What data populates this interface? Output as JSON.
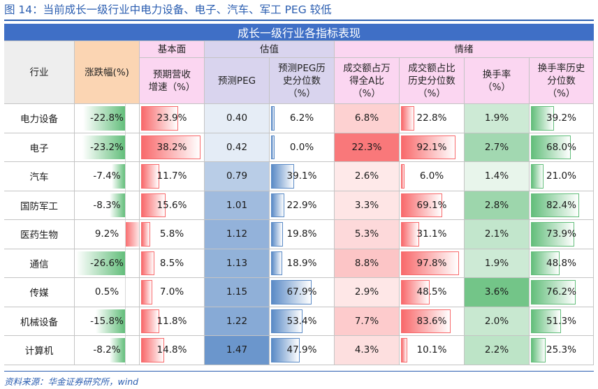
{
  "figure_title": "图 14：当前成长一级行业中电力设备、电子、汽车、军工 PEG 较低",
  "banner": "成长一级行业各指标表现",
  "groups": {
    "fundamental": "基本面",
    "valuation": "估值",
    "sentiment": "情绪"
  },
  "columns": {
    "industry": "行业",
    "change": "涨跌幅(%)",
    "revenue_growth": [
      "预期营收",
      "增速（%）"
    ],
    "peg": "预测PEG",
    "peg_pct": [
      "预测PEG历",
      "史分位数",
      "（%）"
    ],
    "turnover_share": [
      "成交额占万",
      "得全A比",
      "（%）"
    ],
    "turnover_share_pct": [
      "成交额占比",
      "历史分位数",
      "（%）"
    ],
    "turnover_rate": [
      "换手率",
      "（%）"
    ],
    "turnover_rate_pct": [
      "换手率历史",
      "分位数",
      "（%）"
    ]
  },
  "colors": {
    "title_blue": "#2a5db0",
    "banner_blue": "#3f6fc6",
    "header_pink": "#fbd6f1",
    "header_peach": "#fbd5b3",
    "header_lavender": "#d9d4ee",
    "header_gray": "#eeeeee",
    "bar_green": "#63be7b",
    "bar_red": "#f8696b",
    "bar_blue": "#5a8ac6"
  },
  "rows": [
    {
      "industry": "电力设备",
      "change": "-22.8%",
      "revenue_growth": "23.9%",
      "peg": "0.40",
      "peg_pct": "6.2%",
      "turnover_share": "6.8%",
      "turnover_share_pct": "22.8%",
      "turnover_rate": "1.9%",
      "turnover_rate_pct": "39.2%"
    },
    {
      "industry": "电子",
      "change": "-23.2%",
      "revenue_growth": "38.2%",
      "peg": "0.42",
      "peg_pct": "0.0%",
      "turnover_share": "22.3%",
      "turnover_share_pct": "92.1%",
      "turnover_rate": "2.7%",
      "turnover_rate_pct": "68.0%"
    },
    {
      "industry": "汽车",
      "change": "-7.4%",
      "revenue_growth": "11.7%",
      "peg": "0.79",
      "peg_pct": "39.1%",
      "turnover_share": "2.6%",
      "turnover_share_pct": "6.0%",
      "turnover_rate": "1.4%",
      "turnover_rate_pct": "21.0%"
    },
    {
      "industry": "国防军工",
      "change": "-8.3%",
      "revenue_growth": "15.6%",
      "peg": "1.01",
      "peg_pct": "22.9%",
      "turnover_share": "3.3%",
      "turnover_share_pct": "69.1%",
      "turnover_rate": "2.8%",
      "turnover_rate_pct": "82.4%"
    },
    {
      "industry": "医药生物",
      "change": "9.2%",
      "revenue_growth": "5.8%",
      "peg": "1.12",
      "peg_pct": "19.8%",
      "turnover_share": "5.3%",
      "turnover_share_pct": "31.1%",
      "turnover_rate": "2.1%",
      "turnover_rate_pct": "73.9%"
    },
    {
      "industry": "通信",
      "change": "-26.6%",
      "revenue_growth": "8.5%",
      "peg": "1.13",
      "peg_pct": "18.9%",
      "turnover_share": "8.8%",
      "turnover_share_pct": "97.8%",
      "turnover_rate": "1.9%",
      "turnover_rate_pct": "48.8%"
    },
    {
      "industry": "传媒",
      "change": "0.5%",
      "revenue_growth": "7.0%",
      "peg": "1.15",
      "peg_pct": "67.9%",
      "turnover_share": "2.9%",
      "turnover_share_pct": "48.5%",
      "turnover_rate": "3.6%",
      "turnover_rate_pct": "76.2%"
    },
    {
      "industry": "机械设备",
      "change": "-15.8%",
      "revenue_growth": "11.8%",
      "peg": "1.22",
      "peg_pct": "53.4%",
      "turnover_share": "7.7%",
      "turnover_share_pct": "83.6%",
      "turnover_rate": "2.0%",
      "turnover_rate_pct": "51.3%"
    },
    {
      "industry": "计算机",
      "change": "-8.2%",
      "revenue_growth": "14.8%",
      "peg": "1.47",
      "peg_pct": "47.9%",
      "turnover_share": "4.3%",
      "turnover_share_pct": "10.1%",
      "turnover_rate": "2.2%",
      "turnover_rate_pct": "25.3%"
    }
  ],
  "source": "资料来源：华金证券研究所，wind"
}
